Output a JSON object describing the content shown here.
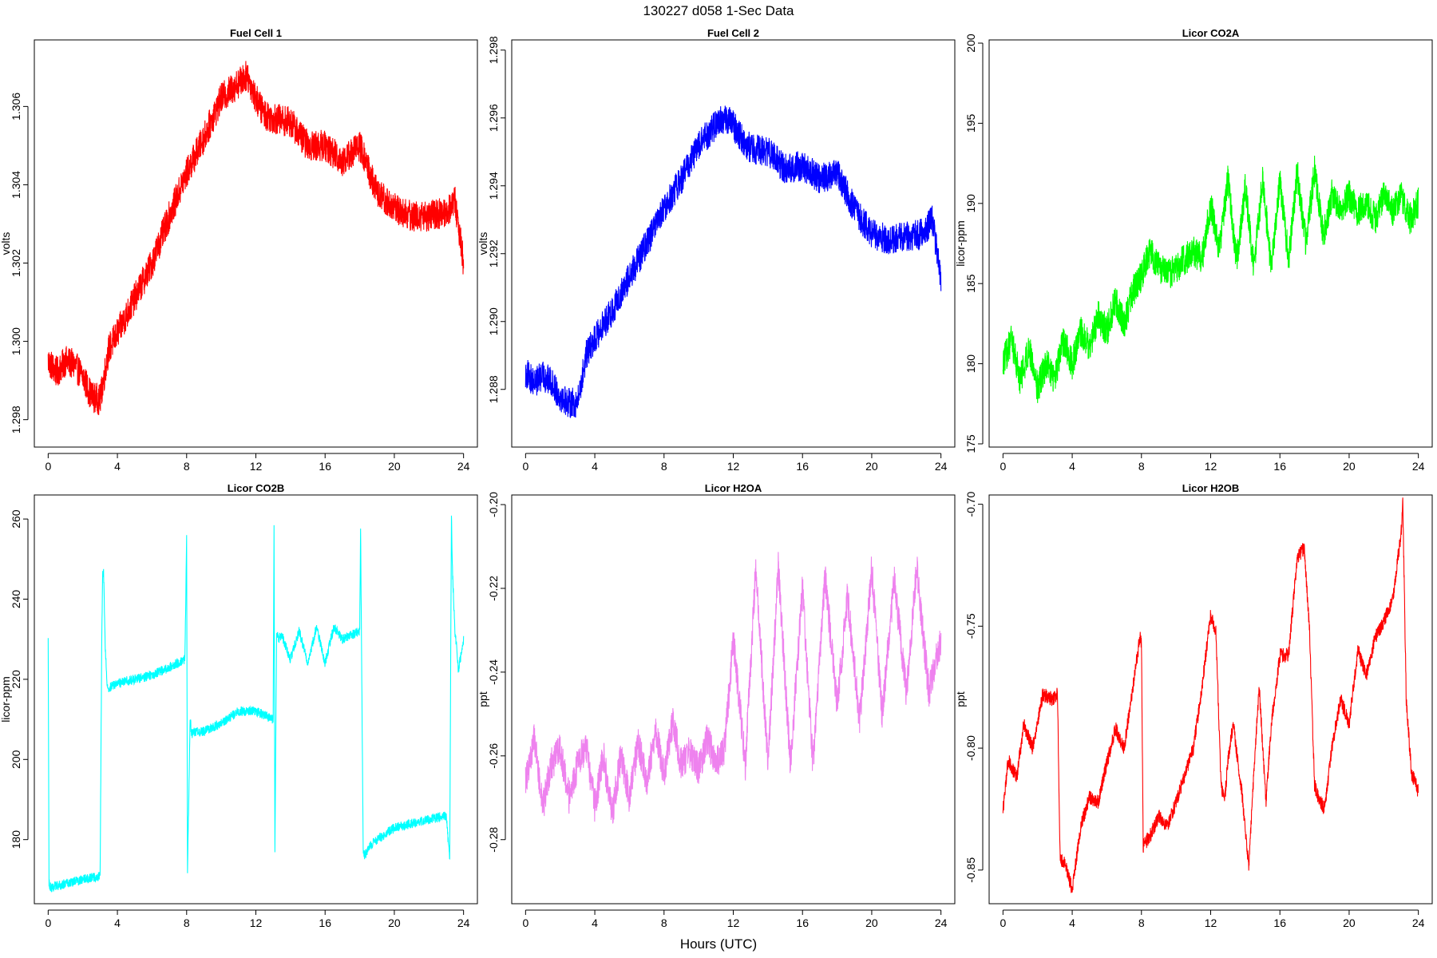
{
  "figure": {
    "title": "130227   d058   1-Sec Data",
    "xlabel": "Hours (UTC)"
  },
  "chart_data": [
    {
      "type": "line",
      "title": "Fuel Cell 1",
      "xlabel": "",
      "ylabel": "volts",
      "color": "#ff0000",
      "xlim": [
        -0.8,
        24.8
      ],
      "ylim": [
        1.2973,
        1.3077
      ],
      "xticks": [
        0,
        4,
        8,
        12,
        16,
        20,
        24
      ],
      "yticks": [
        1.298,
        1.3,
        1.302,
        1.304,
        1.306
      ],
      "ytick_labels": [
        "1.298",
        "1.300",
        "1.302",
        "1.304",
        "1.306"
      ],
      "noise": 0.0004,
      "x": [
        0,
        0.5,
        1,
        1.5,
        2,
        2.5,
        3,
        3.5,
        4,
        5,
        6,
        7,
        8,
        9,
        10,
        11,
        11.5,
        12,
        12.5,
        13,
        14,
        15,
        16,
        17,
        18,
        19,
        20,
        21,
        22,
        23,
        23.5,
        24
      ],
      "y": [
        1.2995,
        1.2992,
        1.2995,
        1.2994,
        1.2991,
        1.2986,
        1.2985,
        1.2998,
        1.3002,
        1.3011,
        1.302,
        1.3032,
        1.3043,
        1.3052,
        1.3062,
        1.3066,
        1.3068,
        1.3062,
        1.3058,
        1.3057,
        1.3056,
        1.305,
        1.305,
        1.3046,
        1.305,
        1.3038,
        1.3034,
        1.3032,
        1.3032,
        1.3033,
        1.3036,
        1.302
      ]
    },
    {
      "type": "line",
      "title": "Fuel Cell 2",
      "xlabel": "",
      "ylabel": "volts",
      "color": "#0000ff",
      "xlim": [
        -0.8,
        24.8
      ],
      "ylim": [
        1.2863,
        1.2983
      ],
      "xticks": [
        0,
        4,
        8,
        12,
        16,
        20,
        24
      ],
      "yticks": [
        1.288,
        1.29,
        1.292,
        1.294,
        1.296,
        1.298
      ],
      "ytick_labels": [
        "1.288",
        "1.290",
        "1.292",
        "1.294",
        "1.296",
        "1.298"
      ],
      "noise": 0.00045,
      "x": [
        0,
        0.5,
        1,
        1.5,
        2,
        2.5,
        3,
        3.5,
        4,
        5,
        6,
        7,
        8,
        9,
        10,
        11,
        11.5,
        12,
        12.5,
        13,
        14,
        15,
        16,
        17,
        18,
        19,
        20,
        21,
        22,
        23,
        23.5,
        24
      ],
      "y": [
        1.2885,
        1.2882,
        1.2884,
        1.2882,
        1.2878,
        1.2876,
        1.2876,
        1.289,
        1.2895,
        1.2903,
        1.2913,
        1.2923,
        1.2933,
        1.2942,
        1.2952,
        1.2958,
        1.296,
        1.2958,
        1.2954,
        1.2951,
        1.295,
        1.2945,
        1.2946,
        1.2942,
        1.2944,
        1.2933,
        1.2926,
        1.2924,
        1.2925,
        1.2926,
        1.293,
        1.2912
      ]
    },
    {
      "type": "line",
      "title": "Licor CO2A",
      "xlabel": "",
      "ylabel": "licor-ppm",
      "color": "#00ff00",
      "xlim": [
        -0.8,
        24.8
      ],
      "ylim": [
        174.8,
        200.2
      ],
      "xticks": [
        0,
        4,
        8,
        12,
        16,
        20,
        24
      ],
      "yticks": [
        175,
        180,
        185,
        190,
        195,
        200
      ],
      "ytick_labels": [
        "175",
        "180",
        "185",
        "190",
        "195",
        "200"
      ],
      "noise": 1.0,
      "x": [
        0,
        0.5,
        1,
        1.5,
        2,
        2.5,
        3,
        3.5,
        4,
        4.5,
        5,
        5.5,
        6,
        6.5,
        7,
        7.5,
        8,
        8.5,
        9,
        9.5,
        10,
        10.5,
        11,
        11.5,
        12,
        12.5,
        13,
        13.5,
        14,
        14.5,
        15,
        15.5,
        16,
        16.5,
        17,
        17.5,
        18,
        18.5,
        19,
        19.5,
        20,
        20.5,
        21,
        21.5,
        22,
        22.5,
        23,
        23.5,
        24
      ],
      "y": [
        180,
        181.5,
        179,
        181,
        178.5,
        180,
        179,
        181.5,
        180,
        182,
        181,
        183,
        182,
        184,
        182.5,
        184.5,
        185.5,
        187,
        186,
        185.5,
        186,
        186.5,
        187,
        186.5,
        190,
        187,
        191.5,
        186.5,
        191,
        186,
        191.5,
        186,
        191.5,
        186.5,
        192,
        187.5,
        192,
        188,
        190.5,
        189.5,
        190.5,
        189.5,
        190,
        189,
        190.5,
        189.5,
        190.5,
        189,
        190
      ]
    },
    {
      "type": "line",
      "title": "Licor CO2B",
      "xlabel": "",
      "ylabel": "licor-ppm",
      "color": "#00ffff",
      "xlim": [
        -0.8,
        24.8
      ],
      "ylim": [
        164,
        266
      ],
      "xticks": [
        0,
        4,
        8,
        12,
        16,
        20,
        24
      ],
      "yticks": [
        180,
        200,
        220,
        240,
        260
      ],
      "ytick_labels": [
        "180",
        "200",
        "220",
        "240",
        "260"
      ],
      "noise": 1.2,
      "x": [
        0,
        0.05,
        0.15,
        1,
        2,
        3.0,
        3.1,
        3.15,
        3.2,
        3.3,
        3.4,
        3.5,
        4,
        5,
        6,
        7,
        7.9,
        8.0,
        8.05,
        8.2,
        8.3,
        8.4,
        9,
        10,
        11,
        12,
        13.0,
        13.05,
        13.1,
        13.2,
        13.3,
        13.5,
        14,
        14.5,
        15,
        15.5,
        16,
        16.5,
        17,
        18.0,
        18.05,
        18.2,
        18.3,
        18.5,
        19,
        20,
        21,
        22,
        23.0,
        23.2,
        23.3,
        23.35,
        23.5,
        23.6,
        23.7,
        24
      ],
      "y": [
        230,
        169,
        168,
        169,
        170,
        171,
        232,
        246,
        247,
        228,
        219,
        218,
        219,
        220,
        221,
        223,
        225,
        255,
        172,
        210,
        206,
        207,
        207,
        209,
        212,
        212,
        210,
        258,
        177,
        232,
        230,
        231,
        225,
        232,
        224,
        233,
        224,
        233,
        230,
        232,
        258,
        177,
        176,
        178,
        180,
        183,
        184,
        185,
        186,
        175,
        262,
        248,
        232,
        228,
        222,
        230
      ]
    },
    {
      "type": "line",
      "title": "Licor H2OA",
      "xlabel": "",
      "ylabel": "ppt",
      "color": "#ee82ee",
      "xlim": [
        -0.8,
        24.8
      ],
      "ylim": [
        -0.2953,
        -0.1977
      ],
      "xticks": [
        0,
        4,
        8,
        12,
        16,
        20,
        24
      ],
      "yticks": [
        -0.28,
        -0.26,
        -0.24,
        -0.22,
        -0.2
      ],
      "ytick_labels": [
        "-0.28",
        "-0.26",
        "-0.24",
        "-0.22",
        "-0.20"
      ],
      "noise": 0.004,
      "x": [
        0,
        0.5,
        1,
        1.5,
        2,
        2.5,
        3,
        3.5,
        4,
        4.5,
        5,
        5.5,
        6,
        6.5,
        7,
        7.5,
        8,
        8.5,
        9,
        9.5,
        10,
        10.5,
        11,
        11.5,
        12,
        12.7,
        13.3,
        14.0,
        14.6,
        15.3,
        16.0,
        16.6,
        17.3,
        18.0,
        18.6,
        19.3,
        20.0,
        20.6,
        21.3,
        22.0,
        22.6,
        23.3,
        24
      ],
      "y": [
        -0.266,
        -0.256,
        -0.272,
        -0.262,
        -0.258,
        -0.27,
        -0.262,
        -0.258,
        -0.272,
        -0.26,
        -0.274,
        -0.26,
        -0.27,
        -0.257,
        -0.266,
        -0.254,
        -0.264,
        -0.252,
        -0.262,
        -0.259,
        -0.263,
        -0.256,
        -0.262,
        -0.258,
        -0.232,
        -0.262,
        -0.215,
        -0.262,
        -0.215,
        -0.262,
        -0.22,
        -0.262,
        -0.217,
        -0.248,
        -0.222,
        -0.252,
        -0.215,
        -0.25,
        -0.218,
        -0.245,
        -0.215,
        -0.245,
        -0.232
      ]
    },
    {
      "type": "line",
      "title": "Licor H2OB",
      "xlabel": "",
      "ylabel": "ppt",
      "color": "#ff0000",
      "xlim": [
        -0.8,
        24.8
      ],
      "ylim": [
        -0.8638,
        -0.6962
      ],
      "xticks": [
        0,
        4,
        8,
        12,
        16,
        20,
        24
      ],
      "yticks": [
        -0.85,
        -0.8,
        -0.75,
        -0.7
      ],
      "ytick_labels": [
        "-0.85",
        "-0.80",
        "-0.75",
        "-0.70"
      ],
      "noise": 0.003,
      "x": [
        0,
        0.3,
        0.8,
        1.2,
        1.7,
        2.3,
        2.9,
        3.15,
        3.3,
        3.6,
        4.0,
        4.5,
        5,
        5.5,
        6,
        6.5,
        7,
        7.5,
        7.9,
        8.0,
        8.1,
        8.5,
        9,
        9.5,
        10,
        11,
        11.5,
        12,
        12.3,
        12.6,
        12.8,
        13.0,
        13.3,
        13.8,
        14.2,
        14.5,
        14.8,
        15.2,
        15.5,
        16,
        16.5,
        17,
        17.4,
        17.7,
        18.0,
        18.2,
        18.6,
        19,
        19.5,
        20,
        20.5,
        21,
        21.5,
        22,
        22.5,
        23.0,
        23.1,
        23.3,
        23.6,
        24
      ],
      "y": [
        -0.825,
        -0.805,
        -0.812,
        -0.79,
        -0.8,
        -0.778,
        -0.78,
        -0.778,
        -0.845,
        -0.848,
        -0.858,
        -0.832,
        -0.82,
        -0.822,
        -0.806,
        -0.792,
        -0.8,
        -0.775,
        -0.755,
        -0.756,
        -0.84,
        -0.836,
        -0.828,
        -0.832,
        -0.822,
        -0.8,
        -0.775,
        -0.745,
        -0.752,
        -0.815,
        -0.822,
        -0.805,
        -0.79,
        -0.818,
        -0.848,
        -0.81,
        -0.775,
        -0.822,
        -0.79,
        -0.762,
        -0.762,
        -0.722,
        -0.718,
        -0.75,
        -0.815,
        -0.82,
        -0.825,
        -0.8,
        -0.78,
        -0.79,
        -0.76,
        -0.77,
        -0.755,
        -0.748,
        -0.74,
        -0.712,
        -0.7,
        -0.78,
        -0.81,
        -0.818
      ]
    }
  ]
}
